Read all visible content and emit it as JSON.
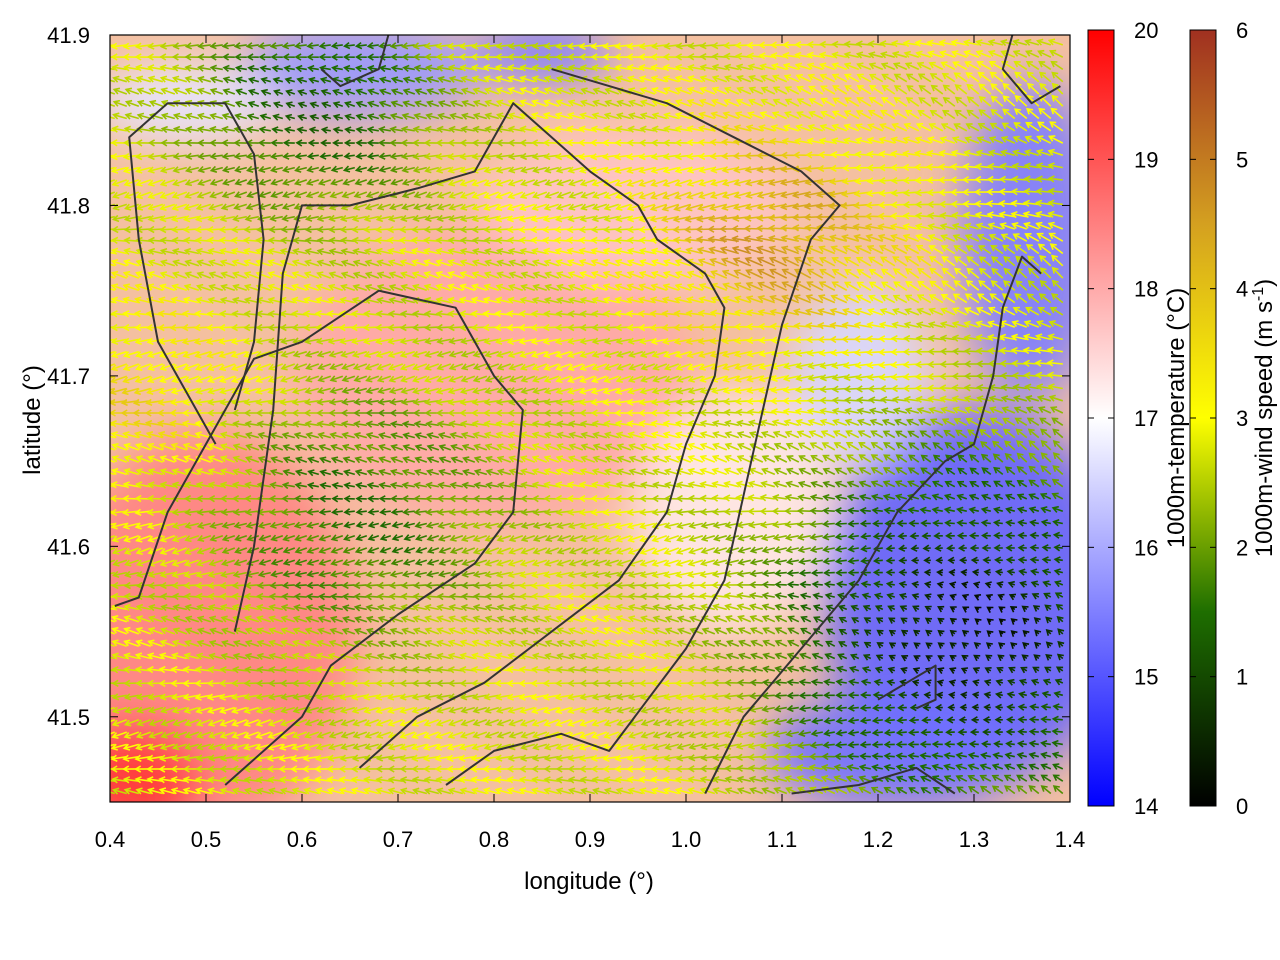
{
  "chart_data": {
    "type": "heatmap",
    "title": "",
    "xlabel": "longitude (°)",
    "ylabel": "latitude (°)",
    "xlim": [
      0.4,
      1.4
    ],
    "ylim": [
      41.45,
      41.9
    ],
    "x_ticks": [
      "0.4",
      "0.5",
      "0.6",
      "0.7",
      "0.8",
      "0.9",
      "1.0",
      "1.1",
      "1.2",
      "1.3",
      "1.4"
    ],
    "y_ticks": [
      "41.5",
      "41.6",
      "41.7",
      "41.8",
      "41.9"
    ],
    "grid": false,
    "layers": [
      {
        "name": "1000m-temperature",
        "kind": "color field",
        "units": "°C"
      },
      {
        "name": "1000m-wind",
        "kind": "wind vectors colored by speed",
        "units": "m s-1"
      },
      {
        "name": "contours",
        "kind": "dark contour lines"
      }
    ],
    "colorbars": [
      {
        "label": "1000m-temperature (°C)",
        "range": [
          14,
          20
        ],
        "ticks": [
          "14",
          "15",
          "16",
          "17",
          "18",
          "19",
          "20"
        ],
        "colors": [
          "#0000ff",
          "#ffffff",
          "#ff0000"
        ]
      },
      {
        "label_main": "1000m-wind speed (m s",
        "label_sup": "-1",
        "label_end": ")",
        "range": [
          0,
          6
        ],
        "ticks": [
          "0",
          "1",
          "2",
          "3",
          "4",
          "5",
          "6"
        ],
        "colors": [
          "#000000",
          "#1e6e00",
          "#ffff00",
          "#d4a020",
          "#a03020"
        ]
      }
    ],
    "temperature_field_approx": {
      "cool_regions": [
        {
          "lon": 0.66,
          "lat": 41.88,
          "value": 15.5
        },
        {
          "lon": 1.33,
          "lat": 41.55,
          "value": 14.5
        },
        {
          "lon": 1.38,
          "lat": 41.78,
          "value": 14.8
        },
        {
          "lon": 0.85,
          "lat": 41.89,
          "value": 15.0
        }
      ],
      "warm_regions": [
        {
          "lon": 0.42,
          "lat": 41.47,
          "value": 19.5
        },
        {
          "lon": 0.58,
          "lat": 41.6,
          "value": 18.6
        },
        {
          "lon": 0.75,
          "lat": 41.68,
          "value": 18.2
        }
      ]
    },
    "wind_speed_regions_approx": [
      {
        "region": "northwest",
        "speed": 2.0
      },
      {
        "region": "central",
        "speed": 4.0
      },
      {
        "region": "east-central",
        "speed": 5.0
      },
      {
        "region": "southeast",
        "speed": 0.5
      }
    ]
  }
}
